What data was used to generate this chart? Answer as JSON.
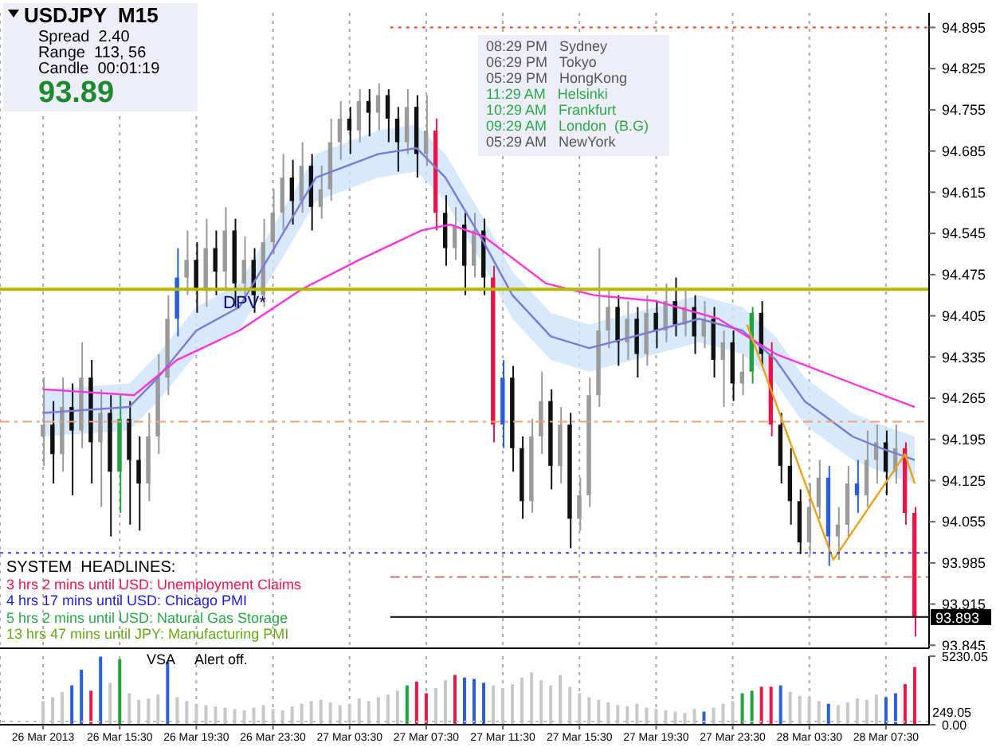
{
  "chart_data": [
    {
      "type": "candlestick",
      "title": "USDJPY  M15",
      "annotations": [
        "Spread  2.40",
        "Range  113, 56",
        "Candle  00:01:19",
        "93.89",
        "08:29 PM   Sydney",
        "06:29 PM   Tokyo",
        "05:29 PM   HongKong",
        "11:29 AM   Helsinki",
        "10:29 AM   Frankfurt",
        "09:29 AM   London  (B.G)",
        "05:29 AM   NewYork",
        "SYSTEM  HEADLINES:",
        "3 hrs 2 mins until USD: Unemployment Claims",
        "4 hrs 17 mins until USD: Chicago PMI",
        "5 hrs 2 mins until USD: Natural Gas Storage",
        "13 hrs 47 mins until JPY: Manufacturing PMI"
      ],
      "x": [
        "2013-03-26T11:30",
        "2013-03-26T12:00",
        "2013-03-26T12:30",
        "2013-03-26T13:00",
        "2013-03-26T13:30",
        "2013-03-26T14:00",
        "2013-03-26T14:30",
        "2013-03-26T15:00",
        "2013-03-26T15:30",
        "2013-03-26T16:00",
        "2013-03-26T16:30",
        "2013-03-26T17:00",
        "2013-03-26T17:30",
        "2013-03-26T18:00",
        "2013-03-26T18:30",
        "2013-03-26T19:00",
        "2013-03-26T19:30",
        "2013-03-26T20:00",
        "2013-03-26T20:30",
        "2013-03-26T21:00",
        "2013-03-26T21:30",
        "2013-03-26T22:00",
        "2013-03-26T22:30",
        "2013-03-26T23:00",
        "2013-03-26T23:30",
        "2013-03-27T00:00",
        "2013-03-27T00:30",
        "2013-03-27T01:00",
        "2013-03-27T01:30",
        "2013-03-27T02:00",
        "2013-03-27T02:30",
        "2013-03-27T03:00",
        "2013-03-27T03:30",
        "2013-03-27T04:00",
        "2013-03-27T04:30",
        "2013-03-27T05:00",
        "2013-03-27T05:30",
        "2013-03-27T06:00",
        "2013-03-27T06:30",
        "2013-03-27T07:00",
        "2013-03-27T07:30",
        "2013-03-27T08:00",
        "2013-03-27T08:30",
        "2013-03-27T09:00",
        "2013-03-27T09:30",
        "2013-03-27T10:00",
        "2013-03-27T10:30",
        "2013-03-27T11:00",
        "2013-03-27T11:30",
        "2013-03-27T12:00",
        "2013-03-27T12:30",
        "2013-03-27T13:00",
        "2013-03-27T13:30",
        "2013-03-27T14:00",
        "2013-03-27T14:30",
        "2013-03-27T15:00",
        "2013-03-27T15:30",
        "2013-03-27T16:00",
        "2013-03-27T16:30",
        "2013-03-27T17:00",
        "2013-03-27T17:30",
        "2013-03-27T18:00",
        "2013-03-27T18:30",
        "2013-03-27T19:00",
        "2013-03-27T19:30",
        "2013-03-27T20:00",
        "2013-03-27T20:30",
        "2013-03-27T21:00",
        "2013-03-27T21:30",
        "2013-03-27T22:00",
        "2013-03-27T22:30",
        "2013-03-27T23:00",
        "2013-03-27T23:30",
        "2013-03-28T00:00",
        "2013-03-28T00:30",
        "2013-03-28T01:00",
        "2013-03-28T01:30",
        "2013-03-28T02:00",
        "2013-03-28T02:30",
        "2013-03-28T03:00",
        "2013-03-28T03:30",
        "2013-03-28T04:00",
        "2013-03-28T04:30",
        "2013-03-28T05:00",
        "2013-03-28T05:30",
        "2013-03-28T06:00",
        "2013-03-28T06:30",
        "2013-03-28T07:00",
        "2013-03-28T07:30",
        "2013-03-28T08:00",
        "2013-03-28T08:30",
        "2013-03-28T09:00"
      ],
      "ohlc": [
        [
          94.2,
          94.3,
          94.15,
          94.22
        ],
        [
          94.22,
          94.26,
          94.12,
          94.17
        ],
        [
          94.17,
          94.3,
          94.14,
          94.25
        ],
        [
          94.25,
          94.29,
          94.1,
          94.21
        ],
        [
          94.21,
          94.36,
          94.18,
          94.3
        ],
        [
          94.3,
          94.33,
          94.12,
          94.19
        ],
        [
          94.19,
          94.28,
          94.08,
          94.24
        ],
        [
          94.24,
          94.27,
          94.03,
          94.14
        ],
        [
          94.14,
          94.27,
          94.07,
          94.23
        ],
        [
          94.23,
          94.26,
          94.05,
          94.16
        ],
        [
          94.16,
          94.2,
          94.04,
          94.12
        ],
        [
          94.12,
          94.24,
          94.09,
          94.2
        ],
        [
          94.2,
          94.34,
          94.17,
          94.3
        ],
        [
          94.3,
          94.44,
          94.27,
          94.4
        ],
        [
          94.4,
          94.52,
          94.37,
          94.47
        ],
        [
          94.47,
          94.55,
          94.44,
          94.5
        ],
        [
          94.5,
          94.53,
          94.41,
          94.45
        ],
        [
          94.45,
          94.57,
          94.42,
          94.52
        ],
        [
          94.52,
          94.55,
          94.44,
          94.48
        ],
        [
          94.48,
          94.59,
          94.45,
          94.55
        ],
        [
          94.55,
          94.57,
          94.42,
          94.46
        ],
        [
          94.46,
          94.54,
          94.43,
          94.5
        ],
        [
          94.5,
          94.52,
          94.41,
          94.44
        ],
        [
          94.44,
          94.57,
          94.42,
          94.53
        ],
        [
          94.53,
          94.62,
          94.51,
          94.58
        ],
        [
          94.58,
          94.68,
          94.55,
          94.64
        ],
        [
          94.64,
          94.67,
          94.56,
          94.6
        ],
        [
          94.6,
          94.7,
          94.58,
          94.66
        ],
        [
          94.66,
          94.68,
          94.55,
          94.59
        ],
        [
          94.59,
          94.66,
          94.57,
          94.62
        ],
        [
          94.62,
          94.74,
          94.6,
          94.7
        ],
        [
          94.7,
          94.77,
          94.67,
          94.74
        ],
        [
          94.74,
          94.76,
          94.68,
          94.72
        ],
        [
          94.72,
          94.79,
          94.7,
          94.77
        ],
        [
          94.77,
          94.79,
          94.71,
          94.75
        ],
        [
          94.75,
          94.8,
          94.72,
          94.78
        ],
        [
          94.78,
          94.79,
          94.7,
          94.74
        ],
        [
          94.74,
          94.76,
          94.65,
          94.7
        ],
        [
          94.7,
          94.79,
          94.68,
          94.76
        ],
        [
          94.76,
          94.78,
          94.64,
          94.68
        ],
        [
          94.68,
          94.78,
          94.66,
          94.72
        ],
        [
          94.72,
          94.74,
          94.55,
          94.58
        ],
        [
          94.58,
          94.61,
          94.49,
          94.52
        ],
        [
          94.52,
          94.59,
          94.5,
          94.56
        ],
        [
          94.56,
          94.58,
          94.44,
          94.49
        ],
        [
          94.49,
          94.58,
          94.47,
          94.55
        ],
        [
          94.55,
          94.57,
          94.44,
          94.47
        ],
        [
          94.47,
          94.49,
          94.19,
          94.22
        ],
        [
          94.22,
          94.33,
          94.18,
          94.3
        ],
        [
          94.3,
          94.32,
          94.14,
          94.18
        ],
        [
          94.18,
          94.2,
          94.06,
          94.09
        ],
        [
          94.09,
          94.23,
          94.07,
          94.2
        ],
        [
          94.2,
          94.31,
          94.17,
          94.26
        ],
        [
          94.26,
          94.28,
          94.11,
          94.15
        ],
        [
          94.15,
          94.25,
          94.12,
          94.22
        ],
        [
          94.22,
          94.24,
          94.01,
          94.06
        ],
        [
          94.06,
          94.13,
          94.04,
          94.1
        ],
        [
          94.1,
          94.3,
          94.08,
          94.27
        ],
        [
          94.27,
          94.52,
          94.25,
          94.38
        ],
        [
          94.38,
          94.45,
          94.35,
          94.42
        ],
        [
          94.42,
          94.44,
          94.32,
          94.36
        ],
        [
          94.36,
          94.43,
          94.33,
          94.4
        ],
        [
          94.4,
          94.42,
          94.3,
          94.34
        ],
        [
          94.34,
          94.44,
          94.32,
          94.41
        ],
        [
          94.41,
          94.43,
          94.35,
          94.38
        ],
        [
          94.38,
          94.46,
          94.36,
          94.43
        ],
        [
          94.43,
          94.47,
          94.37,
          94.39
        ],
        [
          94.39,
          94.45,
          94.37,
          94.42
        ],
        [
          94.42,
          94.44,
          94.34,
          94.37
        ],
        [
          94.37,
          94.43,
          94.35,
          94.4
        ],
        [
          94.4,
          94.42,
          94.3,
          94.33
        ],
        [
          94.33,
          94.38,
          94.25,
          94.36
        ],
        [
          94.36,
          94.38,
          94.26,
          94.29
        ],
        [
          94.29,
          94.34,
          94.27,
          94.31
        ],
        [
          94.31,
          94.42,
          94.29,
          94.41
        ],
        [
          94.41,
          94.43,
          94.32,
          94.34
        ],
        [
          94.34,
          94.36,
          94.2,
          94.22
        ],
        [
          94.22,
          94.24,
          94.12,
          94.15
        ],
        [
          94.15,
          94.18,
          94.05,
          94.09
        ],
        [
          94.09,
          94.11,
          94.0,
          94.02
        ],
        [
          94.02,
          94.12,
          94.0,
          94.08
        ],
        [
          94.08,
          94.16,
          94.06,
          94.13
        ],
        [
          94.13,
          94.15,
          93.98,
          94.03
        ],
        [
          94.03,
          94.08,
          93.99,
          94.05
        ],
        [
          94.05,
          94.15,
          94.03,
          94.12
        ],
        [
          94.12,
          94.16,
          94.07,
          94.1
        ],
        [
          94.1,
          94.21,
          94.08,
          94.16
        ],
        [
          94.16,
          94.22,
          94.12,
          94.19
        ],
        [
          94.19,
          94.21,
          94.1,
          94.14
        ],
        [
          94.14,
          94.22,
          94.12,
          94.18
        ],
        [
          94.18,
          94.19,
          94.05,
          94.07
        ],
        [
          94.07,
          94.08,
          93.86,
          93.893
        ]
      ],
      "colors": [
        "#9a9a9a",
        "#111111",
        "#9a9a9a",
        "#111111",
        "#9a9a9a",
        "#111111",
        "#9a9a9a",
        "#111111",
        "#1fa33a",
        "#111111",
        "#111111",
        "#9a9a9a",
        "#9a9a9a",
        "#9a9a9a",
        "#2b5fd9",
        "#9a9a9a",
        "#111111",
        "#9a9a9a",
        "#111111",
        "#9a9a9a",
        "#111111",
        "#9a9a9a",
        "#111111",
        "#9a9a9a",
        "#9a9a9a",
        "#9a9a9a",
        "#111111",
        "#9a9a9a",
        "#111111",
        "#9a9a9a",
        "#9a9a9a",
        "#9a9a9a",
        "#111111",
        "#9a9a9a",
        "#111111",
        "#9a9a9a",
        "#111111",
        "#111111",
        "#9a9a9a",
        "#111111",
        "#9a9a9a",
        "#e8174a",
        "#111111",
        "#9a9a9a",
        "#111111",
        "#9a9a9a",
        "#111111",
        "#e8174a",
        "#2b5fd9",
        "#111111",
        "#111111",
        "#9a9a9a",
        "#9a9a9a",
        "#111111",
        "#9a9a9a",
        "#111111",
        "#9a9a9a",
        "#9a9a9a",
        "#9a9a9a",
        "#9a9a9a",
        "#111111",
        "#9a9a9a",
        "#111111",
        "#9a9a9a",
        "#111111",
        "#9a9a9a",
        "#111111",
        "#9a9a9a",
        "#111111",
        "#9a9a9a",
        "#111111",
        "#9a9a9a",
        "#111111",
        "#9a9a9a",
        "#1fa33a",
        "#111111",
        "#e8174a",
        "#111111",
        "#111111",
        "#111111",
        "#9a9a9a",
        "#9a9a9a",
        "#2b5fd9",
        "#9a9a9a",
        "#9a9a9a",
        "#2b5fd9",
        "#9a9a9a",
        "#9a9a9a",
        "#111111",
        "#9a9a9a",
        "#e8174a",
        "#e8174a"
      ],
      "series": [
        {
          "type": "line",
          "color": "#7b7bd6",
          "x": [
            "2013-03-26T11:30",
            "2013-03-26T16:00",
            "2013-03-26T17:30",
            "2013-03-26T19:30",
            "2013-03-26T21:45",
            "2013-03-26T23:45",
            "2013-03-27T01:45",
            "2013-03-27T05:00",
            "2013-03-27T07:00",
            "2013-03-27T08:30",
            "2013-03-27T10:30",
            "2013-03-27T12:00",
            "2013-03-27T14:00",
            "2013-03-27T16:00",
            "2013-03-27T19:30",
            "2013-03-27T21:45",
            "2013-03-28T00:00",
            "2013-03-28T01:45",
            "2013-03-28T03:15",
            "2013-03-28T05:45",
            "2013-03-28T07:15",
            "2013-03-28T09:00"
          ],
          "values": [
            94.24,
            94.25,
            94.3,
            94.38,
            94.42,
            94.53,
            94.64,
            94.68,
            94.69,
            94.64,
            94.53,
            94.44,
            94.37,
            94.35,
            94.38,
            94.4,
            94.38,
            94.33,
            94.26,
            94.2,
            94.18,
            94.16
          ],
          "lower": [
            94.2,
            94.21,
            94.26,
            94.34,
            94.38,
            94.49,
            94.6,
            94.64,
            94.65,
            94.6,
            94.49,
            94.4,
            94.33,
            94.31,
            94.34,
            94.36,
            94.34,
            94.29,
            94.22,
            94.16,
            94.14,
            94.12
          ],
          "upper": [
            94.28,
            94.29,
            94.34,
            94.42,
            94.46,
            94.57,
            94.68,
            94.72,
            94.73,
            94.68,
            94.57,
            94.48,
            94.41,
            94.39,
            94.42,
            94.44,
            94.42,
            94.37,
            94.3,
            94.24,
            94.22,
            94.2
          ]
        },
        {
          "type": "line",
          "color": "#ff33dd",
          "x": [
            "2013-03-26T11:30",
            "2013-03-26T16:15",
            "2013-03-26T18:30",
            "2013-03-26T21:45",
            "2013-03-27T01:00",
            "2013-03-27T04:00",
            "2013-03-27T07:15",
            "2013-03-27T08:45",
            "2013-03-27T10:30",
            "2013-03-27T13:45",
            "2013-03-27T16:15",
            "2013-03-27T19:30",
            "2013-03-27T22:45",
            "2013-03-28T01:45",
            "2013-03-28T05:45",
            "2013-03-28T09:00"
          ],
          "values": [
            94.28,
            94.27,
            94.33,
            94.38,
            94.45,
            94.5,
            94.55,
            94.56,
            94.54,
            94.46,
            94.44,
            94.43,
            94.4,
            94.34,
            94.29,
            94.25
          ]
        },
        {
          "type": "line",
          "color": "#e8a21c",
          "x": [
            "2013-03-28T00:15",
            "2013-03-28T04:45",
            "2013-03-28T08:30",
            "2013-03-28T09:00"
          ],
          "values": [
            94.39,
            93.99,
            94.17,
            94.12
          ]
        }
      ],
      "ref_lines": [
        {
          "axis": "y",
          "value": 94.895,
          "color": "#ff3b1f",
          "line_style": "dotted"
        },
        {
          "axis": "y",
          "value": 94.45,
          "label": "DPV*",
          "color": "#b8b800",
          "line_style": "solid"
        },
        {
          "axis": "y",
          "value": 94.225,
          "color": "#f4a07a",
          "line_style": "dashed"
        },
        {
          "axis": "y",
          "value": 94.002,
          "color": "#3344ee",
          "line_style": "dotted"
        },
        {
          "axis": "y",
          "value": 93.961,
          "color": "#c87a70",
          "line_style": "dashed"
        },
        {
          "axis": "y",
          "value": 93.893,
          "label": "93.893",
          "color": "#000000",
          "line_style": "solid"
        }
      ],
      "xlim": [
        "2013-03-26T09:15",
        "2013-03-28T09:45"
      ],
      "xticks": [
        {
          "value": "2013-03-26T11:30",
          "label": null
        },
        {
          "value": "2013-03-26T15:30",
          "label": null
        },
        {
          "value": "2013-03-26T19:30",
          "label": null
        },
        {
          "value": "2013-03-26T23:30",
          "label": null
        },
        {
          "value": "2013-03-27T03:30",
          "label": null
        },
        {
          "value": "2013-03-27T07:30",
          "label": null
        },
        {
          "value": "2013-03-27T11:30",
          "label": null
        },
        {
          "value": "2013-03-27T15:30",
          "label": null
        },
        {
          "value": "2013-03-27T19:30",
          "label": null
        },
        {
          "value": "2013-03-27T23:30",
          "label": null
        },
        {
          "value": "2013-03-28T03:30",
          "label": null
        },
        {
          "value": "2013-03-28T07:30",
          "label": null
        }
      ],
      "ylim": [
        93.84,
        94.92
      ],
      "yticks": [
        94.895,
        94.825,
        94.755,
        94.685,
        94.615,
        94.545,
        94.475,
        94.405,
        94.335,
        94.265,
        94.195,
        94.125,
        94.055,
        93.985,
        93.915,
        93.845
      ],
      "grid": "x",
      "tick_labels": "y"
    },
    {
      "type": "bar",
      "annotations": [
        "VSA",
        "Alert off."
      ],
      "x": [
        "2013-03-26T11:30",
        "2013-03-26T12:00",
        "2013-03-26T12:30",
        "2013-03-26T13:00",
        "2013-03-26T13:30",
        "2013-03-26T14:00",
        "2013-03-26T14:30",
        "2013-03-26T15:00",
        "2013-03-26T15:30",
        "2013-03-26T16:00",
        "2013-03-26T16:30",
        "2013-03-26T17:00",
        "2013-03-26T17:30",
        "2013-03-26T18:00",
        "2013-03-26T18:30",
        "2013-03-26T19:00",
        "2013-03-26T19:30",
        "2013-03-26T20:00",
        "2013-03-26T20:30",
        "2013-03-26T21:00",
        "2013-03-26T21:30",
        "2013-03-26T22:00",
        "2013-03-26T22:30",
        "2013-03-26T23:00",
        "2013-03-26T23:30",
        "2013-03-27T00:00",
        "2013-03-27T00:30",
        "2013-03-27T01:00",
        "2013-03-27T01:30",
        "2013-03-27T02:00",
        "2013-03-27T02:30",
        "2013-03-27T03:00",
        "2013-03-27T03:30",
        "2013-03-27T04:00",
        "2013-03-27T04:30",
        "2013-03-27T05:00",
        "2013-03-27T05:30",
        "2013-03-27T06:00",
        "2013-03-27T06:30",
        "2013-03-27T07:00",
        "2013-03-27T07:30",
        "2013-03-27T08:00",
        "2013-03-27T08:30",
        "2013-03-27T09:00",
        "2013-03-27T09:30",
        "2013-03-27T10:00",
        "2013-03-27T10:30",
        "2013-03-27T11:00",
        "2013-03-27T11:30",
        "2013-03-27T12:00",
        "2013-03-27T12:30",
        "2013-03-27T13:00",
        "2013-03-27T13:30",
        "2013-03-27T14:00",
        "2013-03-27T14:30",
        "2013-03-27T15:00",
        "2013-03-27T15:30",
        "2013-03-27T16:00",
        "2013-03-27T16:30",
        "2013-03-27T17:00",
        "2013-03-27T17:30",
        "2013-03-27T18:00",
        "2013-03-27T18:30",
        "2013-03-27T19:00",
        "2013-03-27T19:30",
        "2013-03-27T20:00",
        "2013-03-27T20:30",
        "2013-03-27T21:00",
        "2013-03-27T21:30",
        "2013-03-27T22:00",
        "2013-03-27T22:30",
        "2013-03-27T23:00",
        "2013-03-27T23:30",
        "2013-03-28T00:00",
        "2013-03-28T00:30",
        "2013-03-28T01:00",
        "2013-03-28T01:30",
        "2013-03-28T02:00",
        "2013-03-28T02:30",
        "2013-03-28T03:00",
        "2013-03-28T03:30",
        "2013-03-28T04:00",
        "2013-03-28T04:30",
        "2013-03-28T05:00",
        "2013-03-28T05:30",
        "2013-03-28T06:00",
        "2013-03-28T06:30",
        "2013-03-28T07:00",
        "2013-03-28T07:30",
        "2013-03-28T08:00",
        "2013-03-28T08:30",
        "2013-03-28T09:00"
      ],
      "values": [
        1800,
        2100,
        2500,
        3000,
        4200,
        2600,
        5200,
        3200,
        5000,
        2400,
        1900,
        2000,
        2300,
        4800,
        2100,
        1800,
        1600,
        1500,
        1400,
        1300,
        1200,
        1100,
        1300,
        1500,
        1200,
        1100,
        1400,
        1600,
        1800,
        1900,
        1700,
        1500,
        1600,
        2000,
        1800,
        2100,
        2300,
        2600,
        3000,
        3300,
        2400,
        2800,
        3400,
        3800,
        3600,
        3500,
        3200,
        3000,
        2800,
        3100,
        3600,
        4000,
        3400,
        3000,
        3800,
        2900,
        2400,
        2100,
        1900,
        1700,
        1500,
        1400,
        1600,
        1300,
        1200,
        1100,
        1000,
        900,
        1200,
        1000,
        1300,
        1600,
        1800,
        2400,
        2600,
        2900,
        2900,
        3000,
        2500,
        2200,
        2100,
        1800,
        1600,
        1500,
        1700,
        2000,
        1900,
        2300,
        2100,
        2400,
        3100,
        4400
      ],
      "colors": [
        "#c8c8c8",
        "#c8c8c8",
        "#c8c8c8",
        "#2b5fd9",
        "#2b5fd9",
        "#e8174a",
        "#2b5fd9",
        "#c8c8c8",
        "#1fa33a",
        "#c8c8c8",
        "#c8c8c8",
        "#c8c8c8",
        "#c8c8c8",
        "#2b5fd9",
        "#c8c8c8",
        "#c8c8c8",
        "#c8c8c8",
        "#c8c8c8",
        "#c8c8c8",
        "#c8c8c8",
        "#c8c8c8",
        "#c8c8c8",
        "#c8c8c8",
        "#c8c8c8",
        "#c8c8c8",
        "#c8c8c8",
        "#c8c8c8",
        "#c8c8c8",
        "#c8c8c8",
        "#c8c8c8",
        "#c8c8c8",
        "#c8c8c8",
        "#c8c8c8",
        "#c8c8c8",
        "#c8c8c8",
        "#c8c8c8",
        "#c8c8c8",
        "#c8c8c8",
        "#1fa33a",
        "#e8174a",
        "#e8174a",
        "#c8c8c8",
        "#c8c8c8",
        "#e8174a",
        "#2b5fd9",
        "#2b5fd9",
        "#2b5fd9",
        "#c8c8c8",
        "#c8c8c8",
        "#c8c8c8",
        "#c8c8c8",
        "#c8c8c8",
        "#c8c8c8",
        "#c8c8c8",
        "#c8c8c8",
        "#c8c8c8",
        "#c8c8c8",
        "#c8c8c8",
        "#c8c8c8",
        "#c8c8c8",
        "#c8c8c8",
        "#c8c8c8",
        "#c8c8c8",
        "#c8c8c8",
        "#c8c8c8",
        "#c8c8c8",
        "#c8c8c8",
        "#c8c8c8",
        "#c8c8c8",
        "#2b5fd9",
        "#c8c8c8",
        "#c8c8c8",
        "#c8c8c8",
        "#1fa33a",
        "#1fa33a",
        "#e8174a",
        "#e8174a",
        "#2b5fd9",
        "#c8c8c8",
        "#c8c8c8",
        "#c8c8c8",
        "#c8c8c8",
        "#2b5fd9",
        "#c8c8c8",
        "#c8c8c8",
        "#c8c8c8",
        "#c8c8c8",
        "#c8c8c8",
        "#2b5fd9",
        "#2b5fd9",
        "#e8174a",
        "#e8174a"
      ],
      "xlim": [
        "2013-03-26T09:15",
        "2013-03-28T09:45"
      ],
      "xticks": [
        {
          "value": "2013-03-26T11:30",
          "label": "26 Mar 2013"
        },
        {
          "value": "2013-03-26T15:30",
          "label": "26 Mar 15:30"
        },
        {
          "value": "2013-03-26T19:30",
          "label": "26 Mar 19:30"
        },
        {
          "value": "2013-03-26T23:30",
          "label": "26 Mar 23:30"
        },
        {
          "value": "2013-03-27T03:30",
          "label": "27 Mar 03:30"
        },
        {
          "value": "2013-03-27T07:30",
          "label": "27 Mar 07:30"
        },
        {
          "value": "2013-03-27T11:30",
          "label": "27 Mar 11:30"
        },
        {
          "value": "2013-03-27T15:30",
          "label": "27 Mar 15:30"
        },
        {
          "value": "2013-03-27T19:30",
          "label": "27 Mar 19:30"
        },
        {
          "value": "2013-03-27T23:30",
          "label": "27 Mar 23:30"
        },
        {
          "value": "2013-03-28T03:30",
          "label": "28 Mar 03:30"
        },
        {
          "value": "2013-03-28T07:30",
          "label": "28 Mar 07:30"
        }
      ],
      "ylim": [
        0,
        5230.05
      ],
      "yticks": [
        {
          "value": 0,
          "label": "0.00"
        },
        {
          "value": 5230.05,
          "label": "5230.05"
        }
      ],
      "ref_lines": [
        {
          "axis": "y",
          "value": 249.05,
          "label": "249.05",
          "color": "#c0c0c0",
          "line_style": "dotted"
        }
      ],
      "grid": "x"
    }
  ]
}
